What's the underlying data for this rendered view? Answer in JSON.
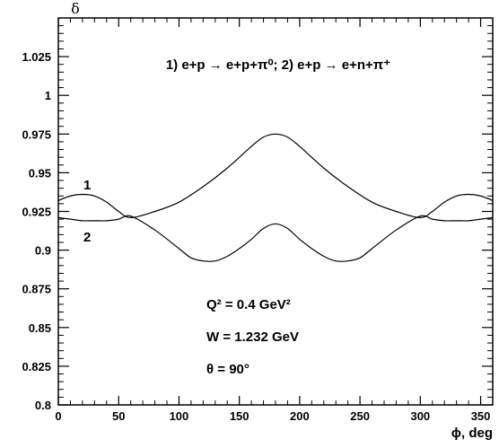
{
  "chart_data": {
    "type": "line",
    "ylabel": "δ",
    "xlabel": "ϕ, deg",
    "xlim": [
      0,
      360
    ],
    "ylim": [
      0.8,
      1.05
    ],
    "x_ticks": [
      0,
      50,
      100,
      150,
      200,
      250,
      300,
      350
    ],
    "x_tick_labels": [
      "0",
      "50",
      "100",
      "150",
      "200",
      "250",
      "300",
      "350"
    ],
    "y_ticks": [
      0.8,
      0.825,
      0.85,
      0.875,
      0.9,
      0.925,
      0.95,
      0.975,
      1,
      1.025
    ],
    "y_tick_labels": [
      "0.8",
      "0.825",
      "0.85",
      "0.875",
      "0.9",
      "0.925",
      "0.95",
      "0.975",
      "1",
      "1.025"
    ],
    "grid": false,
    "legend_text": "1) e+p → e+p+π⁰;   2) e+p → e+n+π⁺",
    "annotations": {
      "q2": "Q² = 0.4 GeV²",
      "w": "W = 1.232 GeV",
      "theta": "θ = 90°"
    },
    "series": [
      {
        "name": "1",
        "x": [
          0,
          10,
          20,
          30,
          40,
          50,
          60,
          80,
          100,
          120,
          140,
          160,
          170,
          180,
          190,
          200,
          220,
          240,
          260,
          280,
          300,
          310,
          320,
          330,
          340,
          350,
          360
        ],
        "values": [
          0.932,
          0.935,
          0.936,
          0.935,
          0.931,
          0.925,
          0.921,
          0.925,
          0.931,
          0.941,
          0.953,
          0.967,
          0.973,
          0.975,
          0.973,
          0.967,
          0.953,
          0.941,
          0.931,
          0.925,
          0.921,
          0.925,
          0.931,
          0.935,
          0.936,
          0.935,
          0.932
        ]
      },
      {
        "name": "2",
        "x": [
          0,
          10,
          20,
          30,
          40,
          50,
          60,
          80,
          100,
          110,
          120,
          130,
          140,
          150,
          160,
          170,
          180,
          190,
          200,
          210,
          220,
          230,
          240,
          250,
          260,
          280,
          300,
          310,
          320,
          330,
          340,
          350,
          360
        ],
        "values": [
          0.921,
          0.92,
          0.919,
          0.919,
          0.919,
          0.92,
          0.922,
          0.913,
          0.901,
          0.895,
          0.893,
          0.893,
          0.896,
          0.901,
          0.907,
          0.914,
          0.917,
          0.914,
          0.907,
          0.901,
          0.896,
          0.893,
          0.893,
          0.895,
          0.901,
          0.913,
          0.922,
          0.92,
          0.919,
          0.919,
          0.919,
          0.92,
          0.921
        ]
      }
    ]
  }
}
